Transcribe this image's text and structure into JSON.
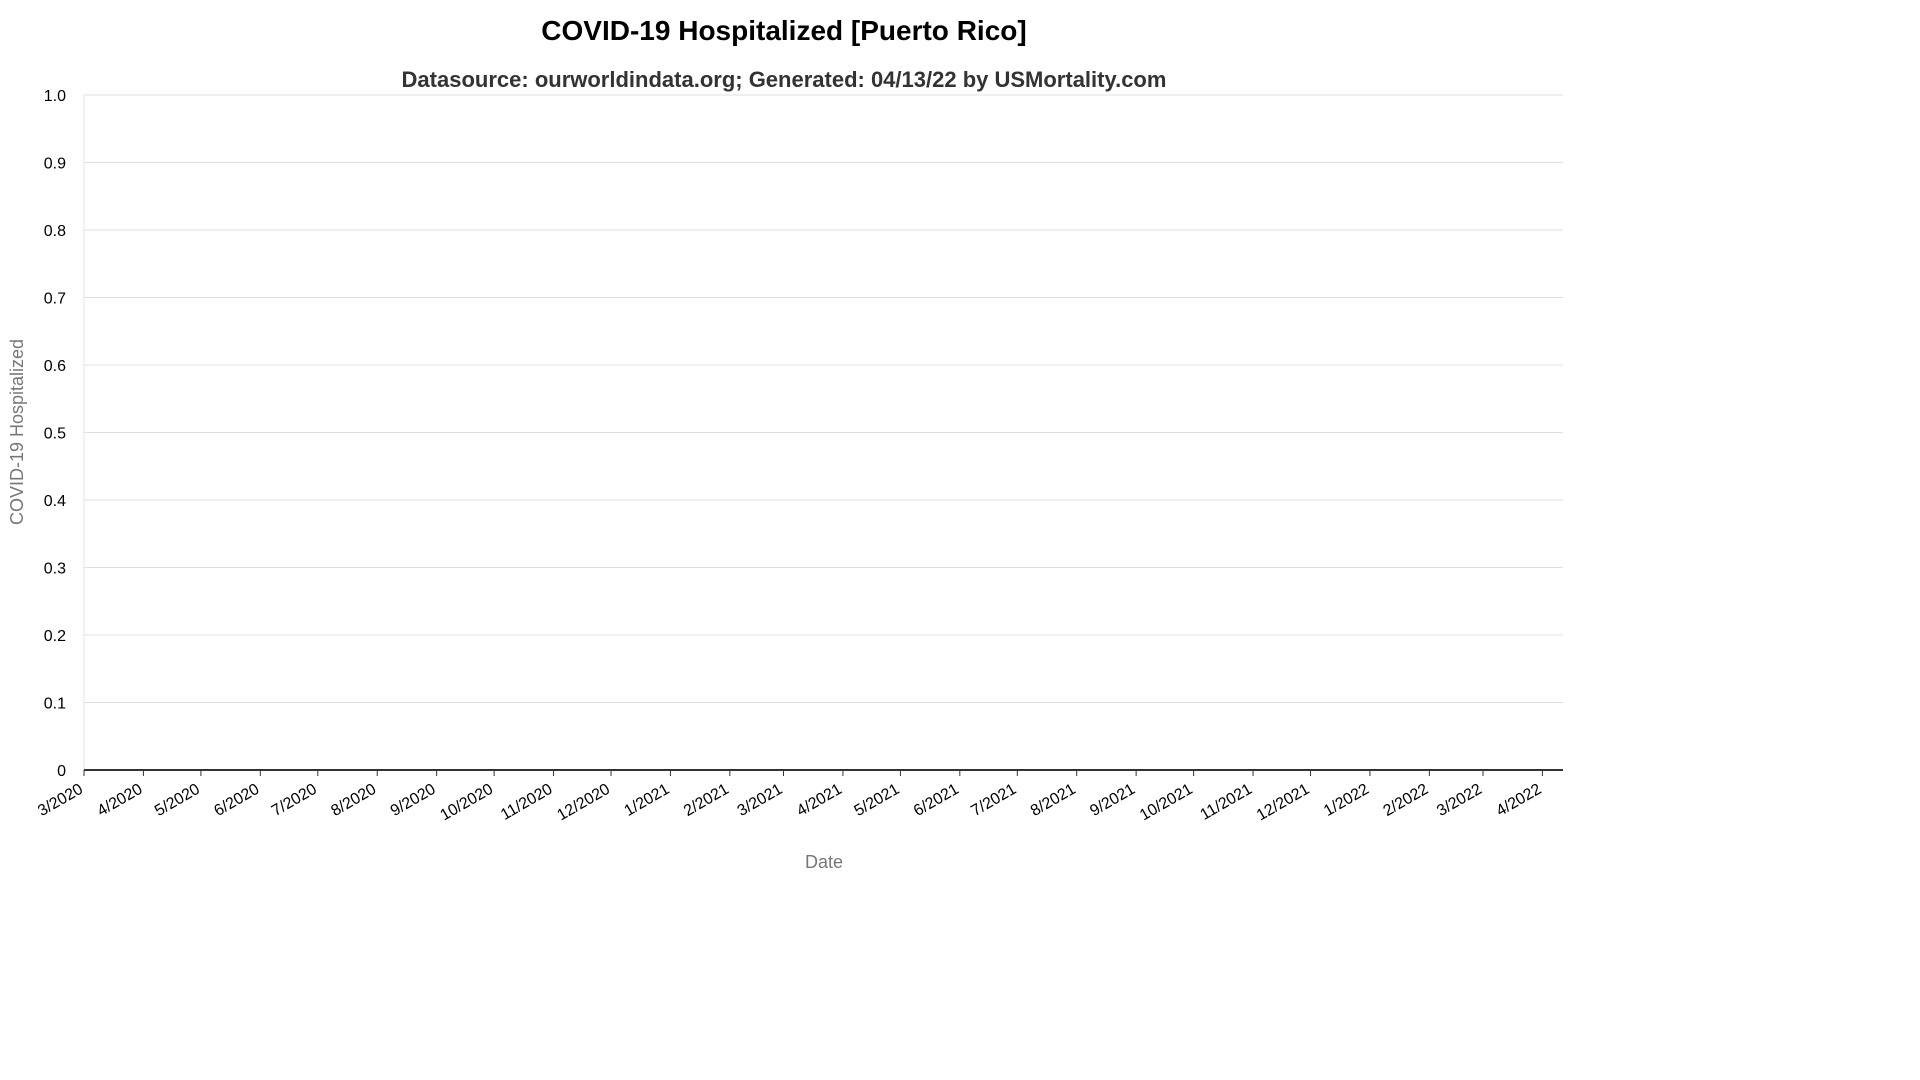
{
  "chart_data": {
    "type": "line",
    "title": "COVID-19 Hospitalized [Puerto Rico]",
    "subtitle": "Datasource: ourworldindata.org; Generated: 04/13/22 by USMortality.com",
    "xlabel": "Date",
    "ylabel": "COVID-19 Hospitalized",
    "ylim": [
      0,
      1
    ],
    "yticks": [
      "0",
      "0.1",
      "0.2",
      "0.3",
      "0.4",
      "0.5",
      "0.6",
      "0.7",
      "0.8",
      "0.9",
      "1.0"
    ],
    "xticks": [
      "3/2020",
      "4/2020",
      "5/2020",
      "6/2020",
      "7/2020",
      "8/2020",
      "9/2020",
      "10/2020",
      "11/2020",
      "12/2020",
      "1/2021",
      "2/2021",
      "3/2021",
      "4/2021",
      "5/2021",
      "6/2021",
      "7/2021",
      "8/2021",
      "9/2021",
      "10/2021",
      "11/2021",
      "12/2021",
      "1/2022",
      "2/2022",
      "3/2022",
      "4/2022"
    ],
    "xlim": [
      "2020-03-01",
      "2022-04-06"
    ],
    "grid": true,
    "series": [
      {
        "values": []
      }
    ]
  },
  "colors": {
    "grid": "#e0e0e0",
    "axis": "#333333",
    "axis_label": "#777777"
  }
}
